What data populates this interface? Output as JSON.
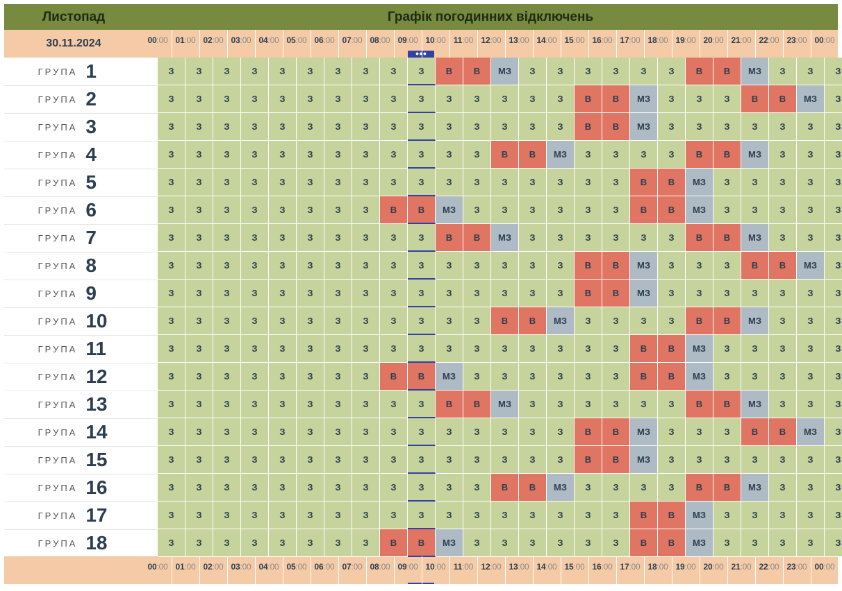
{
  "header": {
    "month": "Листопад",
    "title": "Графік погодинних відключень"
  },
  "date": "30.11.2024",
  "time_labels": [
    "00",
    "01",
    "02",
    "03",
    "04",
    "05",
    "06",
    "07",
    "08",
    "09",
    "10",
    "11",
    "12",
    "13",
    "14",
    "15",
    "16",
    "17",
    "18",
    "19",
    "20",
    "21",
    "22",
    "23",
    "00"
  ],
  "minutes_label": ":00",
  "current_hour_index": 9,
  "group_word": "ГРУПА",
  "colors": {
    "header": "#778a40",
    "timebar": "#f5cba7",
    "state_z": "#c7d39c",
    "state_v": "#e07563",
    "state_mz": "#aebac4",
    "now_marker": "#3340a6"
  },
  "state_labels": {
    "z": "З",
    "v": "В",
    "mz": "МЗ"
  },
  "groups": [
    {
      "number": "1",
      "schedule": [
        "z",
        "z",
        "z",
        "z",
        "z",
        "z",
        "z",
        "z",
        "z",
        "z",
        "v",
        "v",
        "mz",
        "z",
        "z",
        "z",
        "z",
        "z",
        "z",
        "v",
        "v",
        "mz",
        "z",
        "z",
        "z"
      ]
    },
    {
      "number": "2",
      "schedule": [
        "z",
        "z",
        "z",
        "z",
        "z",
        "z",
        "z",
        "z",
        "z",
        "z",
        "z",
        "z",
        "z",
        "z",
        "z",
        "v",
        "v",
        "mz",
        "z",
        "z",
        "z",
        "v",
        "v",
        "mz",
        "z"
      ]
    },
    {
      "number": "3",
      "schedule": [
        "z",
        "z",
        "z",
        "z",
        "z",
        "z",
        "z",
        "z",
        "z",
        "z",
        "z",
        "z",
        "z",
        "z",
        "z",
        "v",
        "v",
        "mz",
        "z",
        "z",
        "z",
        "z",
        "z",
        "z",
        "z"
      ]
    },
    {
      "number": "4",
      "schedule": [
        "z",
        "z",
        "z",
        "z",
        "z",
        "z",
        "z",
        "z",
        "z",
        "z",
        "z",
        "z",
        "v",
        "v",
        "mz",
        "z",
        "z",
        "z",
        "z",
        "v",
        "v",
        "mz",
        "z",
        "z",
        "z"
      ]
    },
    {
      "number": "5",
      "schedule": [
        "z",
        "z",
        "z",
        "z",
        "z",
        "z",
        "z",
        "z",
        "z",
        "z",
        "z",
        "z",
        "z",
        "z",
        "z",
        "z",
        "z",
        "v",
        "v",
        "mz",
        "z",
        "z",
        "z",
        "z",
        "z"
      ]
    },
    {
      "number": "6",
      "schedule": [
        "z",
        "z",
        "z",
        "z",
        "z",
        "z",
        "z",
        "z",
        "v",
        "v",
        "mz",
        "z",
        "z",
        "z",
        "z",
        "z",
        "z",
        "v",
        "v",
        "mz",
        "z",
        "z",
        "z",
        "z",
        "z"
      ]
    },
    {
      "number": "7",
      "schedule": [
        "z",
        "z",
        "z",
        "z",
        "z",
        "z",
        "z",
        "z",
        "z",
        "z",
        "v",
        "v",
        "mz",
        "z",
        "z",
        "z",
        "z",
        "z",
        "z",
        "v",
        "v",
        "mz",
        "z",
        "z",
        "z"
      ]
    },
    {
      "number": "8",
      "schedule": [
        "z",
        "z",
        "z",
        "z",
        "z",
        "z",
        "z",
        "z",
        "z",
        "z",
        "z",
        "z",
        "z",
        "z",
        "z",
        "v",
        "v",
        "mz",
        "z",
        "z",
        "z",
        "v",
        "v",
        "mz",
        "z"
      ]
    },
    {
      "number": "9",
      "schedule": [
        "z",
        "z",
        "z",
        "z",
        "z",
        "z",
        "z",
        "z",
        "z",
        "z",
        "z",
        "z",
        "z",
        "z",
        "z",
        "v",
        "v",
        "mz",
        "z",
        "z",
        "z",
        "z",
        "z",
        "z",
        "z"
      ]
    },
    {
      "number": "10",
      "schedule": [
        "z",
        "z",
        "z",
        "z",
        "z",
        "z",
        "z",
        "z",
        "z",
        "z",
        "z",
        "z",
        "v",
        "v",
        "mz",
        "z",
        "z",
        "z",
        "z",
        "v",
        "v",
        "mz",
        "z",
        "z",
        "z"
      ]
    },
    {
      "number": "11",
      "schedule": [
        "z",
        "z",
        "z",
        "z",
        "z",
        "z",
        "z",
        "z",
        "z",
        "z",
        "z",
        "z",
        "z",
        "z",
        "z",
        "z",
        "z",
        "v",
        "v",
        "mz",
        "z",
        "z",
        "z",
        "z",
        "z"
      ]
    },
    {
      "number": "12",
      "schedule": [
        "z",
        "z",
        "z",
        "z",
        "z",
        "z",
        "z",
        "z",
        "v",
        "v",
        "mz",
        "z",
        "z",
        "z",
        "z",
        "z",
        "z",
        "v",
        "v",
        "mz",
        "z",
        "z",
        "z",
        "z",
        "z"
      ]
    },
    {
      "number": "13",
      "schedule": [
        "z",
        "z",
        "z",
        "z",
        "z",
        "z",
        "z",
        "z",
        "z",
        "z",
        "v",
        "v",
        "mz",
        "z",
        "z",
        "z",
        "z",
        "z",
        "z",
        "v",
        "v",
        "mz",
        "z",
        "z",
        "z"
      ]
    },
    {
      "number": "14",
      "schedule": [
        "z",
        "z",
        "z",
        "z",
        "z",
        "z",
        "z",
        "z",
        "z",
        "z",
        "z",
        "z",
        "z",
        "z",
        "z",
        "v",
        "v",
        "mz",
        "z",
        "z",
        "z",
        "v",
        "v",
        "mz",
        "z"
      ]
    },
    {
      "number": "15",
      "schedule": [
        "z",
        "z",
        "z",
        "z",
        "z",
        "z",
        "z",
        "z",
        "z",
        "z",
        "z",
        "z",
        "z",
        "z",
        "z",
        "v",
        "v",
        "mz",
        "z",
        "z",
        "z",
        "z",
        "z",
        "z",
        "z"
      ]
    },
    {
      "number": "16",
      "schedule": [
        "z",
        "z",
        "z",
        "z",
        "z",
        "z",
        "z",
        "z",
        "z",
        "z",
        "z",
        "z",
        "v",
        "v",
        "mz",
        "z",
        "z",
        "z",
        "z",
        "v",
        "v",
        "mz",
        "z",
        "z",
        "z"
      ]
    },
    {
      "number": "17",
      "schedule": [
        "z",
        "z",
        "z",
        "z",
        "z",
        "z",
        "z",
        "z",
        "z",
        "z",
        "z",
        "z",
        "z",
        "z",
        "z",
        "z",
        "z",
        "v",
        "v",
        "mz",
        "z",
        "z",
        "z",
        "z",
        "z"
      ]
    },
    {
      "number": "18",
      "schedule": [
        "z",
        "z",
        "z",
        "z",
        "z",
        "z",
        "z",
        "z",
        "v",
        "v",
        "mz",
        "z",
        "z",
        "z",
        "z",
        "z",
        "z",
        "v",
        "v",
        "mz",
        "z",
        "z",
        "z",
        "z",
        "z"
      ]
    }
  ]
}
